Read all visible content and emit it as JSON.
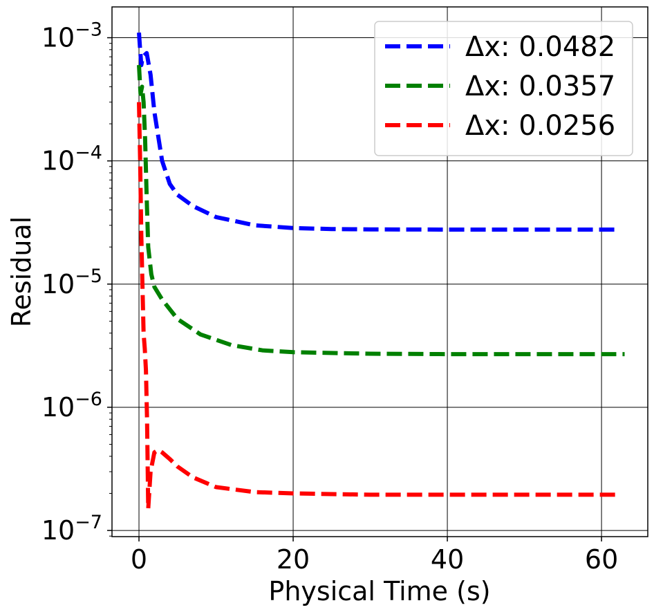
{
  "chart_data": {
    "type": "line",
    "title": "",
    "xlabel": "Physical Time (s)",
    "ylabel": "Residual",
    "x_scale": "linear",
    "y_scale": "log",
    "xlim": [
      -3.5,
      66
    ],
    "ylim_log10": [
      -7.05,
      -2.75
    ],
    "x_ticks": [
      0,
      20,
      40,
      60
    ],
    "x_tick_labels": [
      "0",
      "20",
      "40",
      "60"
    ],
    "y_ticks_log10": [
      -7,
      -6,
      -5,
      -4,
      -3
    ],
    "y_tick_labels": [
      {
        "base": "10",
        "exp": "−7"
      },
      {
        "base": "10",
        "exp": "−6"
      },
      {
        "base": "10",
        "exp": "−5"
      },
      {
        "base": "10",
        "exp": "−4"
      },
      {
        "base": "10",
        "exp": "−3"
      }
    ],
    "grid": true,
    "legend_position": "top-right",
    "series": [
      {
        "name": "Δx: 0.0482",
        "color": "#0000ff",
        "x": [
          0,
          0.15,
          0.3,
          0.5,
          1,
          1.5,
          2,
          3,
          4,
          5,
          7,
          10,
          15,
          20,
          25,
          30,
          40,
          50,
          62
        ],
        "y": [
          0.0011,
          0.0008,
          0.0006,
          0.0007,
          0.00075,
          0.0005,
          0.00025,
          0.0001,
          6.5e-05,
          5.3e-05,
          4.3e-05,
          3.5e-05,
          3e-05,
          2.85e-05,
          2.8e-05,
          2.78e-05,
          2.77e-05,
          2.77e-05,
          2.77e-05
        ]
      },
      {
        "name": "Δx: 0.0357",
        "color": "#008000",
        "x": [
          0,
          0.2,
          0.4,
          0.6,
          0.8,
          1,
          1.2,
          1.6,
          2,
          3,
          5,
          8,
          12,
          16,
          20,
          30,
          40,
          50,
          63
        ],
        "y": [
          0.0006,
          0.00035,
          0.0004,
          0.0003,
          0.00015,
          5e-05,
          2e-05,
          1.2e-05,
          9.5e-06,
          7.5e-06,
          5.2e-06,
          3.9e-06,
          3.2e-06,
          2.9e-06,
          2.8e-06,
          2.72e-06,
          2.7e-06,
          2.7e-06,
          2.7e-06
        ]
      },
      {
        "name": "Δx: 0.0256",
        "color": "#ff0000",
        "x": [
          0,
          0.15,
          0.3,
          0.45,
          0.6,
          0.75,
          0.9,
          1.05,
          1.2,
          1.5,
          2,
          2.5,
          3,
          4,
          5,
          7,
          10,
          15,
          20,
          30,
          40,
          50,
          62
        ],
        "y": [
          0.0003,
          0.0001,
          2.5e-05,
          1e-05,
          4e-06,
          3e-06,
          2e-06,
          8e-07,
          1.5e-07,
          3e-07,
          4.3e-07,
          4.5e-07,
          4.3e-07,
          3.8e-07,
          3.3e-07,
          2.7e-07,
          2.25e-07,
          2.05e-07,
          2e-07,
          1.95e-07,
          1.95e-07,
          1.95e-07,
          1.95e-07
        ]
      }
    ]
  }
}
